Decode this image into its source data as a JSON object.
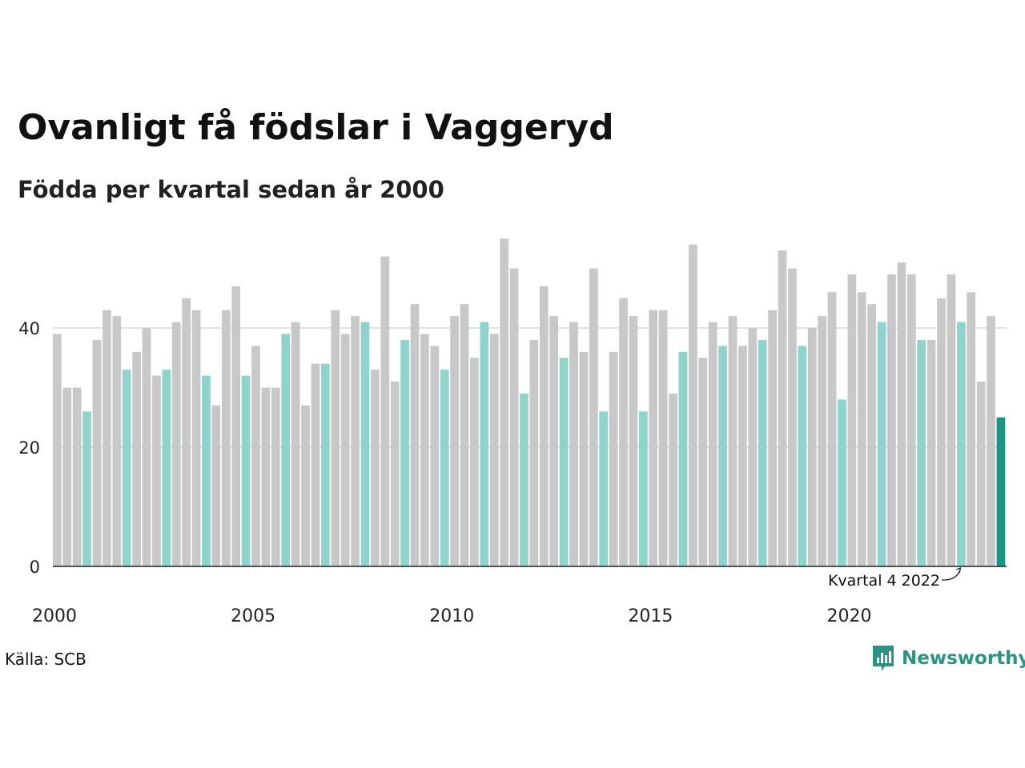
{
  "title": "Ovanligt få födslar i Vaggeryd",
  "subtitle": "Födda per kvartal sedan år 2000",
  "source": "Källa: SCB",
  "brand": {
    "name": "Newsworthy",
    "icon": "newsworthy-logo-icon",
    "color": "#2a9385"
  },
  "colors": {
    "bar_default": "#c8c8c8",
    "bar_q4": "#8ed4cd",
    "bar_latest": "#1a9485",
    "gridline": "#e2e2e2",
    "axis": "#222222"
  },
  "chart_data": {
    "type": "bar",
    "ylim": [
      0,
      55
    ],
    "yticks": [
      0,
      20,
      40
    ],
    "grid": true,
    "xtick_labels": [
      "2000",
      "2005",
      "2010",
      "2015",
      "2020"
    ],
    "annotation": {
      "text": "Kvartal 4 2022",
      "target_index": 91
    },
    "series": [
      {
        "values": [
          39,
          30,
          30,
          26,
          38,
          43,
          42,
          33,
          36,
          40,
          32,
          33,
          41,
          45,
          43,
          32,
          27,
          43,
          47,
          32,
          37,
          30,
          30,
          39,
          41,
          27,
          34,
          34,
          43,
          39,
          42,
          41,
          33,
          52,
          31,
          38,
          44,
          39,
          37,
          33,
          42,
          44,
          35,
          41,
          39,
          55,
          50,
          29,
          38,
          47,
          42,
          35,
          41,
          36,
          50,
          26,
          36,
          45,
          42,
          26,
          43,
          43,
          29,
          36,
          54,
          35,
          41,
          37,
          42,
          37,
          40,
          38,
          43,
          53,
          50,
          37,
          40,
          42,
          46,
          28,
          49,
          46,
          44,
          41,
          49,
          51,
          49,
          38,
          38,
          45,
          49,
          41,
          46,
          31,
          42,
          25
        ],
        "highlight": [
          3,
          7,
          11,
          15,
          19,
          23,
          27,
          31,
          35,
          39,
          43,
          47,
          51,
          55,
          59,
          63,
          67,
          71,
          75,
          79,
          83,
          87,
          91
        ],
        "latest_index": 95
      }
    ]
  }
}
